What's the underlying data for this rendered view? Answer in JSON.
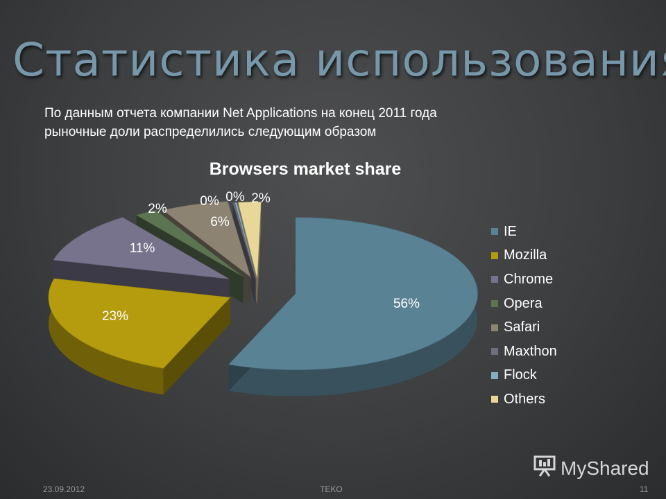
{
  "slide": {
    "title": "Статистика использования",
    "subtitle_line1": "По данным отчета компании Net Applications на конец 2011 года",
    "subtitle_line2": "рыночные доли распределились следующим образом"
  },
  "footer": {
    "date": "23.09.2012",
    "center": "TEKO",
    "page": "11"
  },
  "brand": {
    "name": "MyShared",
    "icon": "presentation-screen-icon"
  },
  "chart_data": {
    "type": "pie",
    "title": "Browsers market share",
    "legend_position": "right",
    "labels": [
      "IE",
      "Mozilla",
      "Chrome",
      "Opera",
      "Safari",
      "Maxthon",
      "Flock",
      "Others"
    ],
    "values": [
      56,
      23,
      11,
      2,
      6,
      0,
      0,
      2
    ],
    "data_labels": [
      "56%",
      "23%",
      "11%",
      "2%",
      "6%",
      "0%",
      "0%",
      "2%"
    ],
    "colors": [
      "#5a8295",
      "#b59c0e",
      "#77738c",
      "#5d7453",
      "#8c8373",
      "#6e6e7e",
      "#86aebf",
      "#e9d699"
    ]
  }
}
